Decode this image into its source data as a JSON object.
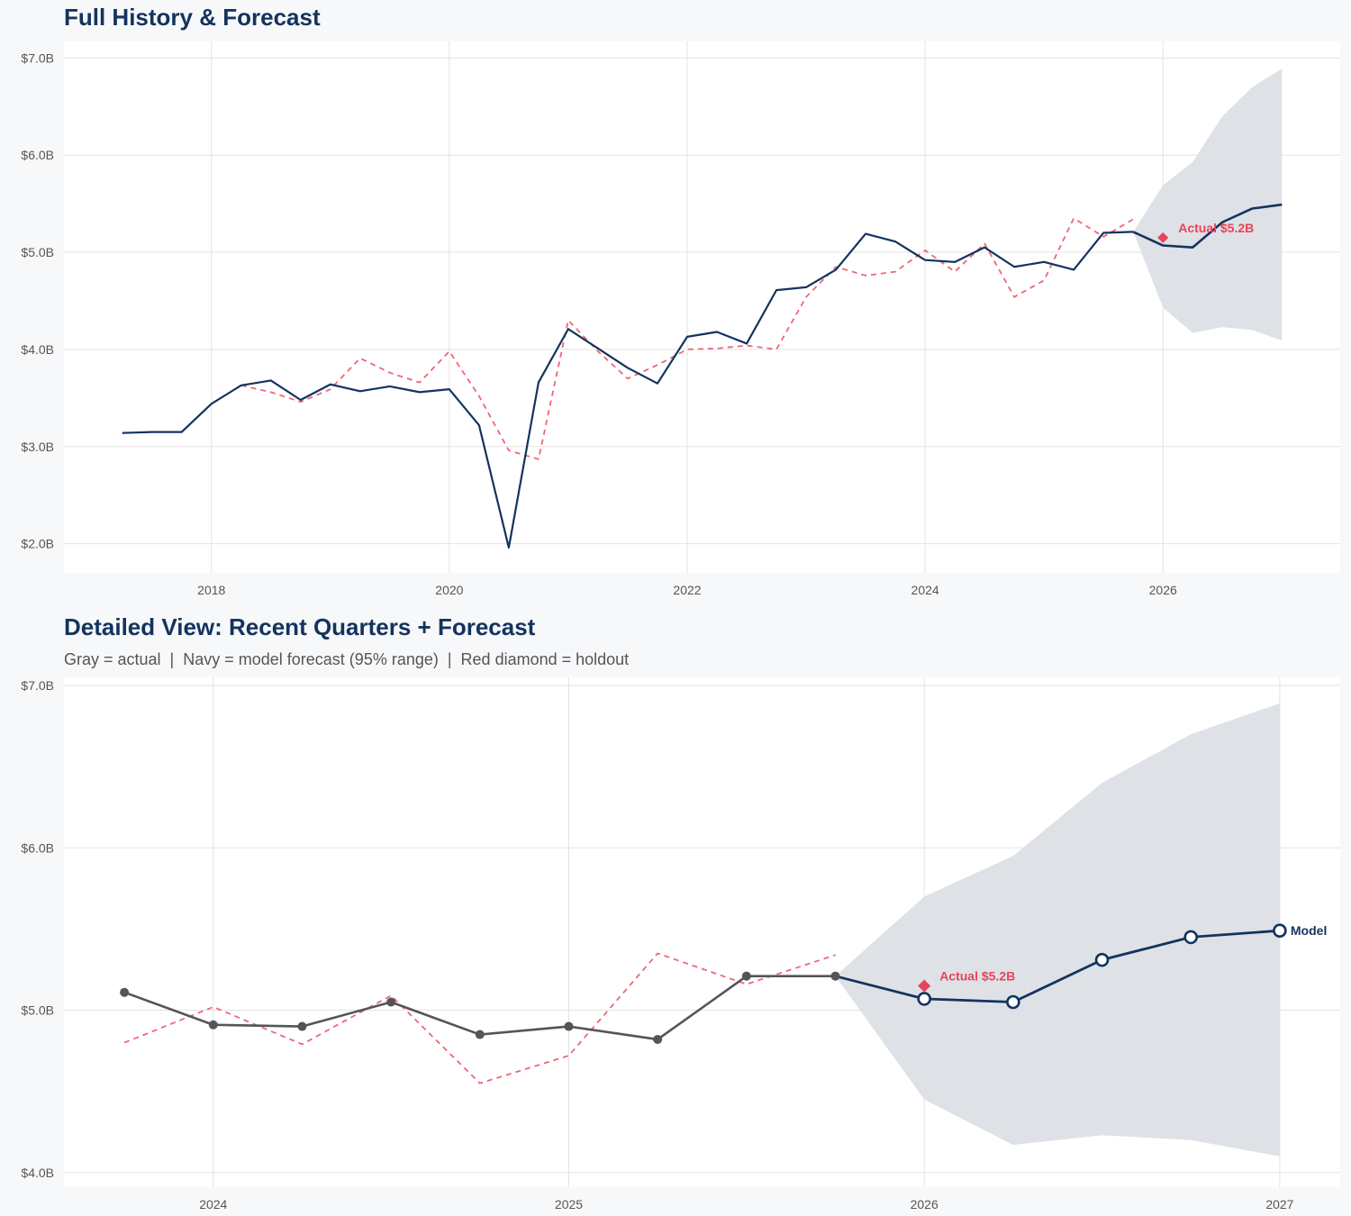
{
  "chart_data": [
    {
      "type": "line",
      "title": "Full History & Forecast",
      "xlim": [
        2016.76,
        2027.49
      ],
      "ylim": [
        1.7,
        7.17
      ],
      "x_ticks": [
        2018,
        2020,
        2022,
        2024,
        2026
      ],
      "x_tick_labels": [
        "2018",
        "2020",
        "2022",
        "2024",
        "2026"
      ],
      "y_ticks": [
        2,
        3,
        4,
        5,
        6,
        7
      ],
      "y_tick_labels": [
        "$2.0B",
        "$3.0B",
        "$4.0B",
        "$5.0B",
        "$6.0B",
        "$7.0B"
      ],
      "grid": true,
      "actual": {
        "color": "#14335e",
        "x": [
          2017.25,
          2017.5,
          2017.75,
          2018,
          2018.25,
          2018.5,
          2018.75,
          2019,
          2019.25,
          2019.5,
          2019.75,
          2020,
          2020.25,
          2020.5,
          2020.75,
          2021,
          2021.25,
          2021.5,
          2021.75,
          2022,
          2022.25,
          2022.5,
          2022.75,
          2023,
          2023.25,
          2023.5,
          2023.75,
          2024,
          2024.25,
          2024.5,
          2024.75,
          2025,
          2025.25,
          2025.5,
          2025.75
        ],
        "y": [
          3.14,
          3.15,
          3.15,
          3.44,
          3.63,
          3.68,
          3.48,
          3.64,
          3.57,
          3.62,
          3.56,
          3.59,
          3.22,
          1.96,
          3.66,
          4.21,
          4.01,
          3.81,
          3.65,
          4.13,
          4.18,
          4.06,
          4.61,
          4.64,
          4.82,
          5.19,
          5.11,
          4.92,
          4.9,
          5.05,
          4.85,
          4.9,
          4.82,
          5.2,
          5.21
        ]
      },
      "fitted": {
        "color": "#ee6677",
        "style": "dashed",
        "x": [
          2018.25,
          2018.5,
          2018.75,
          2019,
          2019.25,
          2019.5,
          2019.75,
          2020,
          2020.25,
          2020.5,
          2020.75,
          2021,
          2021.25,
          2021.5,
          2021.75,
          2022,
          2022.25,
          2022.5,
          2022.75,
          2023,
          2023.25,
          2023.5,
          2023.75,
          2024,
          2024.25,
          2024.5,
          2024.75,
          2025,
          2025.25,
          2025.5,
          2025.75
        ],
        "y": [
          3.63,
          3.56,
          3.46,
          3.59,
          3.91,
          3.76,
          3.66,
          3.98,
          3.52,
          2.96,
          2.87,
          4.3,
          3.98,
          3.7,
          3.84,
          4.0,
          4.01,
          4.04,
          4.0,
          4.54,
          4.85,
          4.76,
          4.8,
          5.02,
          4.8,
          5.09,
          4.54,
          4.71,
          5.35,
          5.16,
          5.34
        ]
      },
      "forecast": {
        "color": "#14335e",
        "x": [
          2025.75,
          2026,
          2026.25,
          2026.5,
          2026.75,
          2027
        ],
        "y": [
          5.21,
          5.07,
          5.05,
          5.31,
          5.45,
          5.49
        ],
        "lower": [
          5.21,
          4.43,
          4.17,
          4.23,
          4.2,
          4.09
        ],
        "upper": [
          5.21,
          5.69,
          5.93,
          6.4,
          6.7,
          6.89
        ],
        "band_color": "#dce0e6"
      },
      "holdout": {
        "x": 2026,
        "y": 5.15,
        "label": "Actual $5.2B",
        "color": "#e8435a"
      }
    },
    {
      "type": "line",
      "title": "Detailed View: Recent Quarters + Forecast",
      "subtitle": "Gray = actual  |  Navy = model forecast (95% range)  |  Red diamond = holdout",
      "xlim": [
        2023.58,
        2027.17
      ],
      "ylim": [
        3.91,
        7.05
      ],
      "x_ticks": [
        2024,
        2025,
        2026,
        2027
      ],
      "x_tick_labels": [
        "2024",
        "2025",
        "2026",
        "2027"
      ],
      "y_ticks": [
        4,
        5,
        6,
        7
      ],
      "y_tick_labels": [
        "$4.0B",
        "$5.0B",
        "$6.0B",
        "$7.0B"
      ],
      "grid": true,
      "actual": {
        "color": "#555555",
        "markers": true,
        "x": [
          2023.75,
          2024,
          2024.25,
          2024.5,
          2024.75,
          2025,
          2025.25,
          2025.5,
          2025.75
        ],
        "y": [
          5.11,
          4.91,
          4.9,
          5.05,
          4.85,
          4.9,
          4.82,
          5.21,
          5.21
        ]
      },
      "fitted": {
        "color": "#ee6677",
        "style": "dashed",
        "x": [
          2023.75,
          2024,
          2024.25,
          2024.5,
          2024.75,
          2025,
          2025.25,
          2025.5,
          2025.75
        ],
        "y": [
          4.8,
          5.02,
          4.79,
          5.09,
          4.55,
          4.72,
          5.35,
          5.16,
          5.34
        ]
      },
      "forecast": {
        "color": "#14335e",
        "markers": "open",
        "label": "Model",
        "x": [
          2025.75,
          2026,
          2026.25,
          2026.5,
          2026.75,
          2027
        ],
        "y": [
          5.21,
          5.07,
          5.05,
          5.31,
          5.45,
          5.49
        ],
        "lower": [
          5.21,
          4.45,
          4.17,
          4.23,
          4.2,
          4.1
        ],
        "upper": [
          5.21,
          5.7,
          5.95,
          6.4,
          6.7,
          6.89
        ],
        "band_color": "#dce0e6"
      },
      "holdout": {
        "x": 2026,
        "y": 5.15,
        "label": "Actual $5.2B",
        "color": "#e8435a"
      }
    }
  ]
}
